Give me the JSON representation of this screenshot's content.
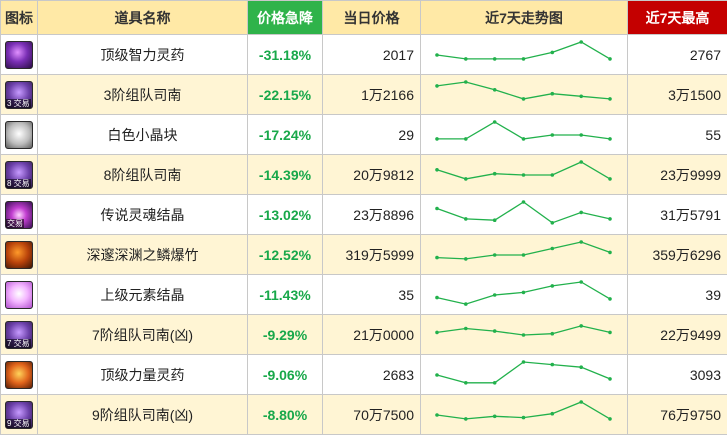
{
  "headers": {
    "icon": "图标",
    "name": "道具名称",
    "drop": "价格急降",
    "today": "当日价格",
    "trend": "近7天走势图",
    "max": "近7天最高"
  },
  "colors": {
    "header_bg": "#ffe9a6",
    "drop_header_bg": "#2fb34a",
    "max_header_bg": "#c40000",
    "drop_text": "#18a84a",
    "sparkline": "#22b14c",
    "row_alt_bg": "#fff5d4"
  },
  "rows": [
    {
      "icon": "purple-orb-icon",
      "icon_class": "ic-purple-dark",
      "tag": "",
      "name": "顶级智力灵药",
      "drop": "-31.18%",
      "today": "2017",
      "max": "2767",
      "trend": [
        0.5,
        0.35,
        0.35,
        0.35,
        0.6,
        1.0,
        0.35
      ]
    },
    {
      "icon": "purple-rune-icon",
      "icon_class": "ic-purple",
      "tag": "3 交易",
      "name": "3阶组队司南",
      "drop": "-22.15%",
      "today": "1万2166",
      "max": "3万1500",
      "trend": [
        0.85,
        1.0,
        0.7,
        0.35,
        0.55,
        0.45,
        0.35
      ]
    },
    {
      "icon": "white-cube-icon",
      "icon_class": "ic-cube",
      "tag": "",
      "name": "白色小晶块",
      "drop": "-17.24%",
      "today": "29",
      "max": "55",
      "trend": [
        0.35,
        0.35,
        1.0,
        0.35,
        0.5,
        0.5,
        0.35
      ]
    },
    {
      "icon": "purple-rune-icon",
      "icon_class": "ic-purple",
      "tag": "8 交易",
      "name": "8阶组队司南",
      "drop": "-14.39%",
      "today": "20万9812",
      "max": "23万9999",
      "trend": [
        0.7,
        0.35,
        0.55,
        0.5,
        0.5,
        1.0,
        0.35
      ]
    },
    {
      "icon": "soul-crystal-icon",
      "icon_class": "ic-soul",
      "tag": "交易",
      "name": "传说灵魂结晶",
      "drop": "-13.02%",
      "today": "23万8896",
      "max": "31万5791",
      "trend": [
        0.75,
        0.35,
        0.3,
        1.0,
        0.2,
        0.6,
        0.35
      ]
    },
    {
      "icon": "bomb-icon",
      "icon_class": "ic-bomb",
      "tag": "",
      "name": "深邃深渊之鳞爆竹",
      "drop": "-12.52%",
      "today": "319万5999",
      "max": "359万6296",
      "trend": [
        0.4,
        0.35,
        0.5,
        0.5,
        0.75,
        1.0,
        0.6
      ]
    },
    {
      "icon": "pink-crystal-icon",
      "icon_class": "ic-pink",
      "tag": "",
      "name": "上级元素结晶",
      "drop": "-11.43%",
      "today": "35",
      "max": "39",
      "trend": [
        0.4,
        0.15,
        0.5,
        0.6,
        0.85,
        1.0,
        0.35
      ]
    },
    {
      "icon": "purple-rune-icon",
      "icon_class": "ic-purple",
      "tag": "7 交易",
      "name": "7阶组队司南(凶)",
      "drop": "-9.29%",
      "today": "21万0000",
      "max": "22万9499",
      "trend": [
        0.6,
        0.75,
        0.65,
        0.5,
        0.55,
        0.85,
        0.6
      ]
    },
    {
      "icon": "strength-potion-icon",
      "icon_class": "ic-orange",
      "tag": "",
      "name": "顶级力量灵药",
      "drop": "-9.06%",
      "today": "2683",
      "max": "3093",
      "trend": [
        0.5,
        0.2,
        0.2,
        1.0,
        0.9,
        0.8,
        0.35
      ]
    },
    {
      "icon": "purple-rune-icon",
      "icon_class": "ic-purple",
      "tag": "9 交易",
      "name": "9阶组队司南(凶)",
      "drop": "-8.80%",
      "today": "70万7500",
      "max": "76万9750",
      "trend": [
        0.5,
        0.35,
        0.45,
        0.4,
        0.55,
        1.0,
        0.35
      ]
    }
  ]
}
